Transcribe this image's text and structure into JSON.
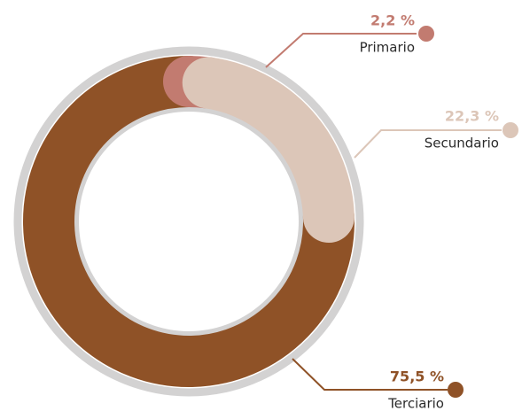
{
  "chart_data": {
    "type": "donut",
    "categories": [
      "Primario",
      "Secundario",
      "Terciario"
    ],
    "values": [
      2.2,
      22.3,
      75.5
    ],
    "value_labels": [
      "2,2 %",
      "22,3 %",
      "75,5 %"
    ],
    "colors": [
      "#c27b70",
      "#dcc6b8",
      "#8f5227"
    ]
  }
}
